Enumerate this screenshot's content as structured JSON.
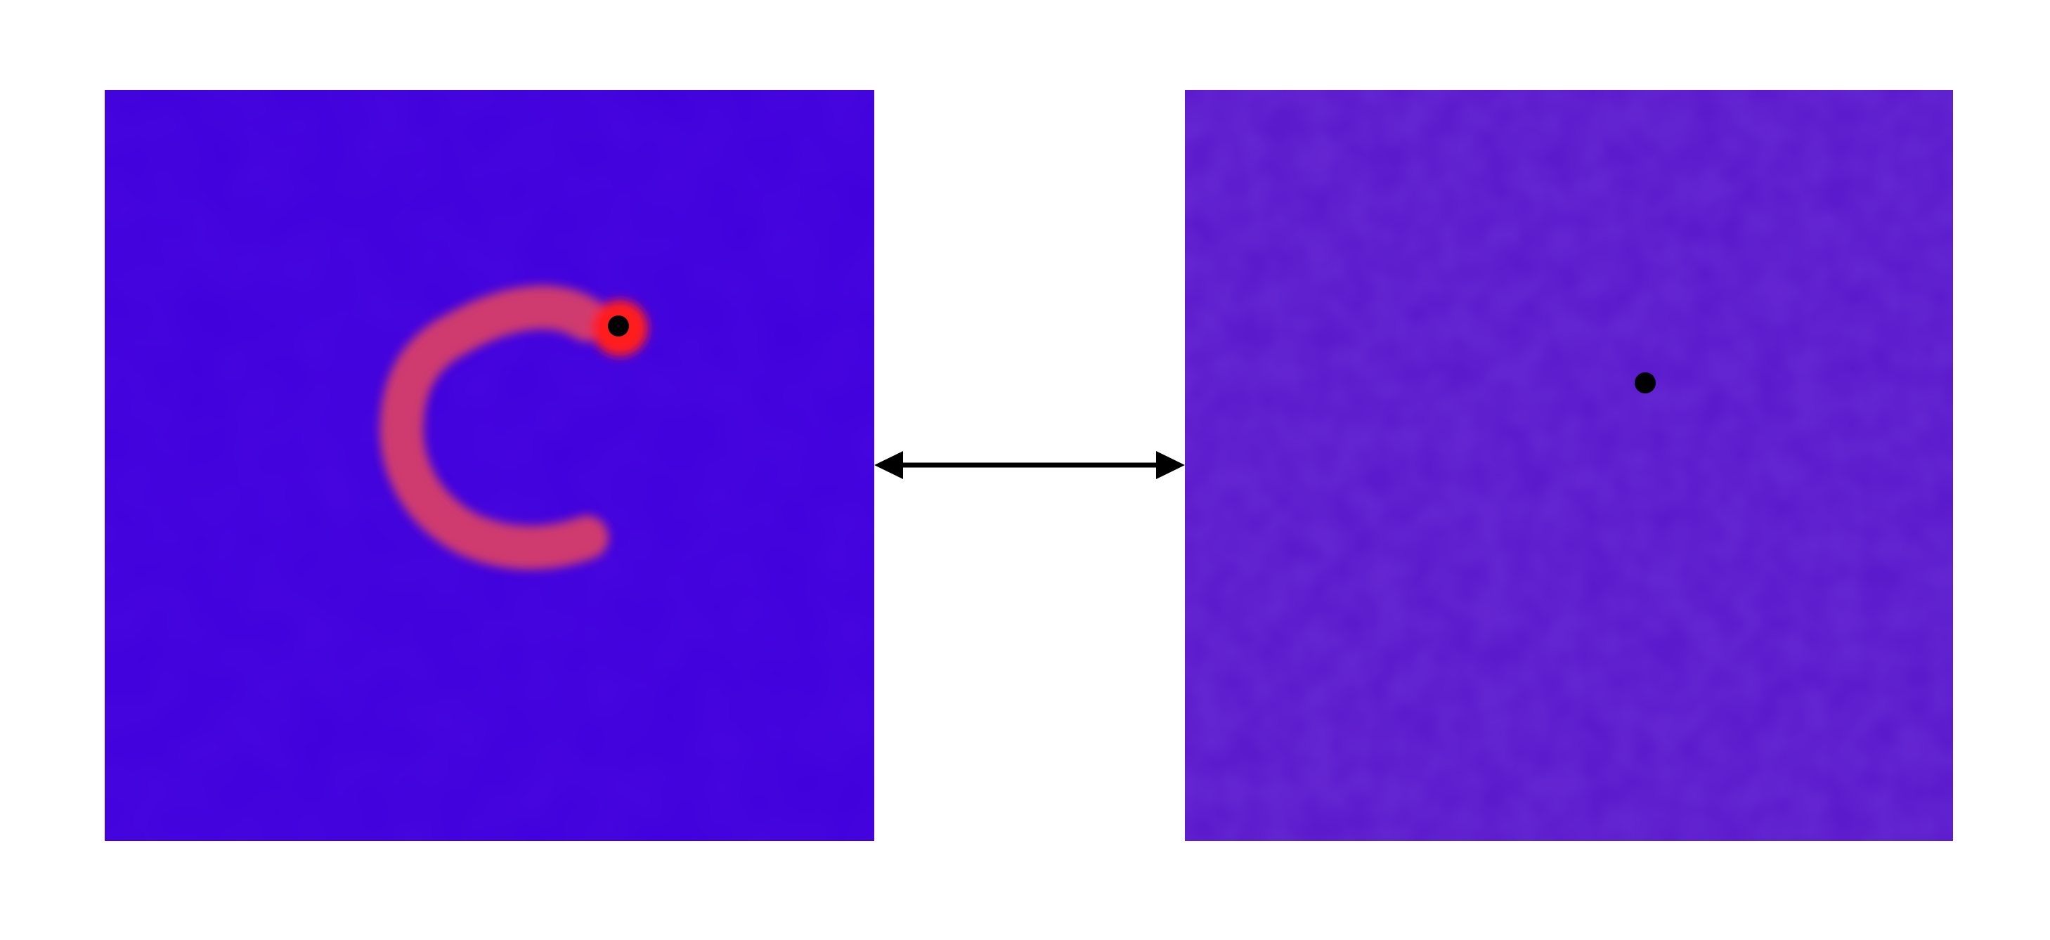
{
  "colors": {
    "background": "#ffffff",
    "left_panel": "#3f00dc",
    "right_panel": "#5818cc",
    "stroke_color": "#cf3b6e",
    "stroke_head": "#ff1a1a",
    "marker": "#000000",
    "arrow": "#000000"
  },
  "panels": [
    {
      "id": "left",
      "has_red_stroke": true
    },
    {
      "id": "right",
      "has_red_stroke": false
    }
  ],
  "connector": {
    "type": "double-headed-arrow"
  }
}
